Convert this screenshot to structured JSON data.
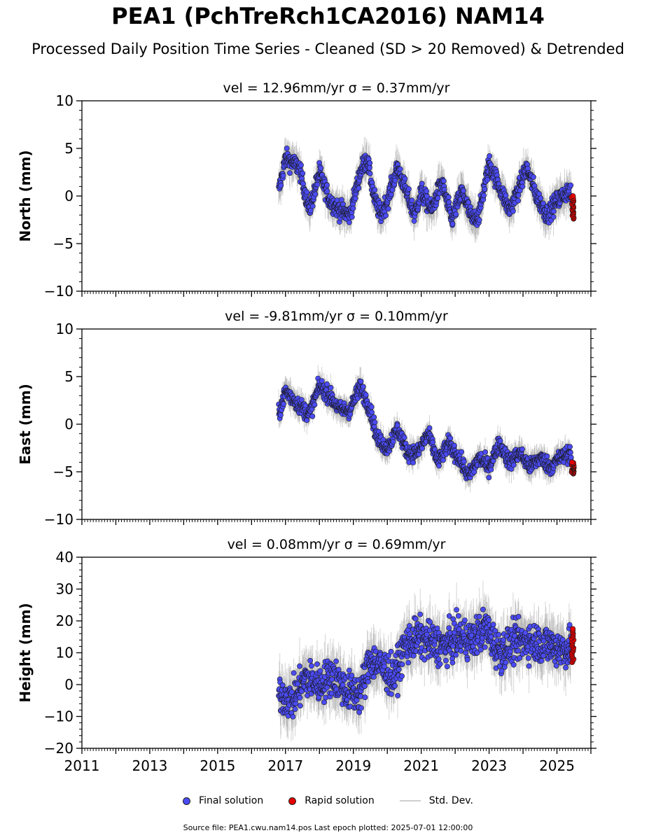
{
  "title": "PEA1 (PchTreRch1CA2016) NAM14",
  "subtitle": "Processed Daily Position Time Series - Cleaned (SD > 20 Removed) & Detrended",
  "legend": {
    "final": "Final solution",
    "rapid": "Rapid solution",
    "stddev": "Std. Dev."
  },
  "footer": "Source file: PEA1.cwu.nam14.pos  Last epoch plotted: 2025-07-01 12:00:00",
  "colors": {
    "final": "#4b4bf5",
    "rapid": "#e60000",
    "stddev": "#a0a0a0"
  },
  "chart_data": [
    {
      "type": "scatter",
      "panel_title": "vel = 12.96mm/yr   σ = 0.37mm/yr",
      "ylabel": "North (mm)",
      "xlim": [
        2011,
        2026
      ],
      "ylim": [
        -10,
        10
      ],
      "yticks": [
        -10,
        -5,
        0,
        5,
        10
      ],
      "xticks": [
        2011,
        2013,
        2015,
        2017,
        2019,
        2021,
        2023,
        2025
      ],
      "series": [
        {
          "name": "Final solution",
          "x_range": [
            2016.8,
            2025.42
          ],
          "anchors": [
            [
              2016.8,
              0.5
            ],
            [
              2017.0,
              4.0
            ],
            [
              2017.4,
              3.0
            ],
            [
              2017.7,
              -1.5
            ],
            [
              2018.0,
              2.5
            ],
            [
              2018.3,
              -0.5
            ],
            [
              2018.6,
              -1.5
            ],
            [
              2018.9,
              -2.0
            ],
            [
              2019.2,
              2.5
            ],
            [
              2019.4,
              4.0
            ],
            [
              2019.6,
              0.0
            ],
            [
              2019.8,
              -2.0
            ],
            [
              2020.0,
              -0.5
            ],
            [
              2020.3,
              3.0
            ],
            [
              2020.5,
              1.0
            ],
            [
              2020.8,
              -2.0
            ],
            [
              2021.0,
              0.5
            ],
            [
              2021.3,
              -1.5
            ],
            [
              2021.6,
              1.5
            ],
            [
              2021.9,
              -2.5
            ],
            [
              2022.2,
              0.5
            ],
            [
              2022.5,
              -2.5
            ],
            [
              2022.7,
              -2.0
            ],
            [
              2023.0,
              3.5
            ],
            [
              2023.3,
              1.0
            ],
            [
              2023.6,
              -1.5
            ],
            [
              2023.9,
              1.0
            ],
            [
              2024.1,
              3.0
            ],
            [
              2024.4,
              0.0
            ],
            [
              2024.7,
              -2.0
            ],
            [
              2025.0,
              -0.5
            ],
            [
              2025.3,
              0.5
            ],
            [
              2025.42,
              0.0
            ]
          ],
          "amplitude": 2.5,
          "noise": 0.8
        },
        {
          "name": "Rapid solution",
          "x_range": [
            2025.43,
            2025.5
          ],
          "y_range": [
            -2.4,
            0.0
          ]
        }
      ]
    },
    {
      "type": "scatter",
      "panel_title": "vel = -9.81mm/yr   σ = 0.10mm/yr",
      "ylabel": "East (mm)",
      "xlim": [
        2011,
        2026
      ],
      "ylim": [
        -10,
        10
      ],
      "yticks": [
        -10,
        -5,
        0,
        5,
        10
      ],
      "xticks": [
        2011,
        2013,
        2015,
        2017,
        2019,
        2021,
        2023,
        2025
      ],
      "series": [
        {
          "name": "Final solution",
          "x_range": [
            2016.8,
            2025.42
          ],
          "anchors": [
            [
              2016.8,
              1.0
            ],
            [
              2017.0,
              3.5
            ],
            [
              2017.4,
              2.0
            ],
            [
              2017.7,
              1.0
            ],
            [
              2018.0,
              4.0
            ],
            [
              2018.3,
              3.0
            ],
            [
              2018.6,
              1.5
            ],
            [
              2018.9,
              1.5
            ],
            [
              2019.2,
              4.0
            ],
            [
              2019.5,
              1.5
            ],
            [
              2019.7,
              -1.5
            ],
            [
              2020.0,
              -2.5
            ],
            [
              2020.3,
              -0.5
            ],
            [
              2020.6,
              -3.0
            ],
            [
              2020.9,
              -3.0
            ],
            [
              2021.2,
              -1.0
            ],
            [
              2021.5,
              -4.0
            ],
            [
              2021.8,
              -2.0
            ],
            [
              2022.1,
              -3.5
            ],
            [
              2022.4,
              -5.5
            ],
            [
              2022.7,
              -3.5
            ],
            [
              2023.0,
              -4.5
            ],
            [
              2023.3,
              -2.0
            ],
            [
              2023.6,
              -4.0
            ],
            [
              2023.9,
              -3.0
            ],
            [
              2024.2,
              -4.5
            ],
            [
              2024.5,
              -3.5
            ],
            [
              2024.8,
              -4.5
            ],
            [
              2025.1,
              -3.5
            ],
            [
              2025.42,
              -3.0
            ]
          ],
          "amplitude": 1.5,
          "noise": 0.7
        },
        {
          "name": "Rapid solution",
          "x_range": [
            2025.43,
            2025.5
          ],
          "y_range": [
            -5.2,
            -4.0
          ]
        }
      ]
    },
    {
      "type": "scatter",
      "panel_title": "vel = 0.08mm/yr   σ = 0.69mm/yr",
      "ylabel": "Height (mm)",
      "xlim": [
        2011,
        2026
      ],
      "ylim": [
        -20,
        40
      ],
      "yticks": [
        -20,
        -10,
        0,
        10,
        20,
        30,
        40
      ],
      "xticks": [
        2011,
        2013,
        2015,
        2017,
        2019,
        2021,
        2023,
        2025
      ],
      "xtick_labels": [
        "2011",
        "2013",
        "2015",
        "2017",
        "2019",
        "2021",
        "2023",
        "2025"
      ],
      "series": [
        {
          "name": "Final solution",
          "x_range": [
            2016.8,
            2025.42
          ],
          "anchors": [
            [
              2016.8,
              -3.0
            ],
            [
              2017.2,
              -5.0
            ],
            [
              2017.6,
              2.0
            ],
            [
              2018.0,
              0.0
            ],
            [
              2018.4,
              3.0
            ],
            [
              2018.8,
              -2.0
            ],
            [
              2019.2,
              -3.0
            ],
            [
              2019.5,
              8.0
            ],
            [
              2019.9,
              5.0
            ],
            [
              2020.2,
              2.0
            ],
            [
              2020.5,
              12.0
            ],
            [
              2020.9,
              15.0
            ],
            [
              2021.3,
              13.0
            ],
            [
              2021.7,
              12.0
            ],
            [
              2022.1,
              15.0
            ],
            [
              2022.5,
              14.0
            ],
            [
              2022.9,
              18.0
            ],
            [
              2023.3,
              10.0
            ],
            [
              2023.7,
              13.0
            ],
            [
              2024.1,
              14.0
            ],
            [
              2024.5,
              13.0
            ],
            [
              2024.9,
              12.0
            ],
            [
              2025.2,
              11.0
            ],
            [
              2025.42,
              12.0
            ]
          ],
          "amplitude": 5.0,
          "noise": 5.0
        },
        {
          "name": "Rapid solution",
          "x_range": [
            2025.43,
            2025.5
          ],
          "y_range": [
            7.0,
            17.5
          ]
        }
      ]
    }
  ]
}
